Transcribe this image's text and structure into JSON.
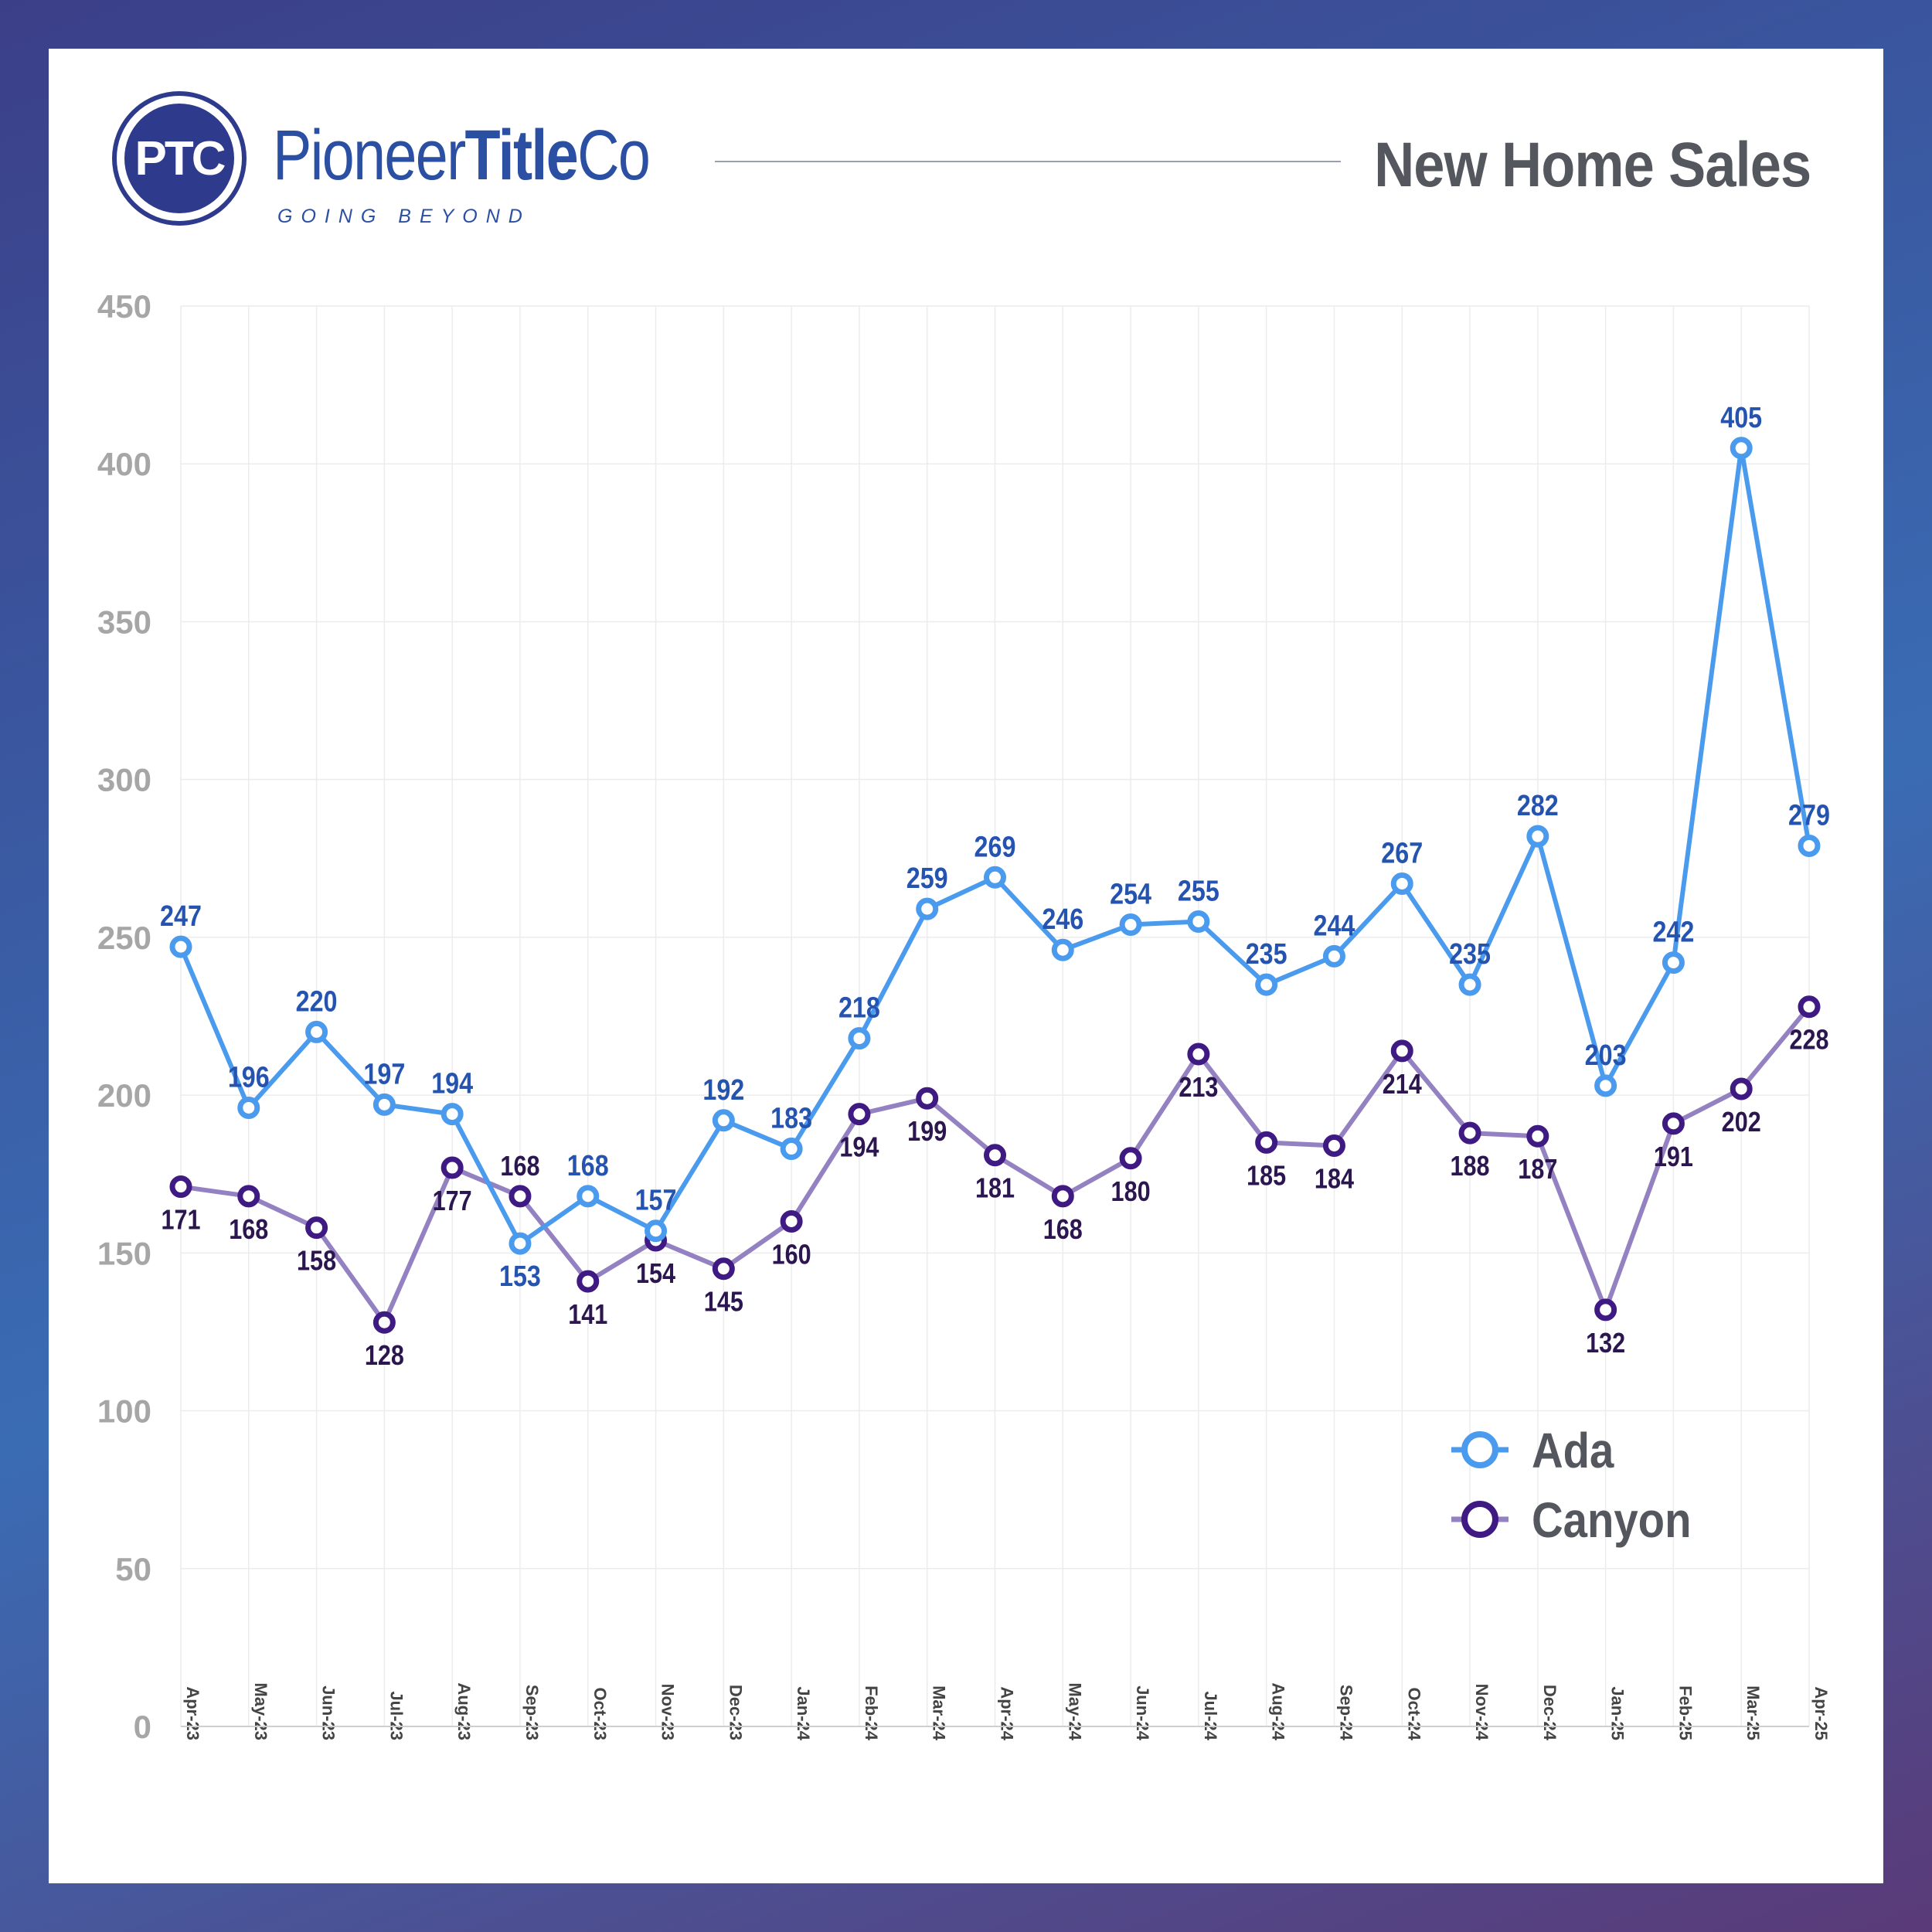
{
  "header": {
    "logo_mark": "PTC",
    "brand_part1": "Pioneer",
    "brand_part2": "Title",
    "brand_part3": "Co",
    "tagline": "GOING BEYOND",
    "title": "New Home Sales"
  },
  "colors": {
    "ada": "#4a9aee",
    "ada_label": "#2553b0",
    "canyon_line": "#9481c2",
    "canyon_marker": "#3f1a82",
    "canyon_label": "#2c1650",
    "axis_text": "#a6a6a6",
    "grid": "#ececec"
  },
  "chart_data": {
    "type": "line",
    "title": "New Home Sales",
    "categories": [
      "Apr-23",
      "May-23",
      "Jun-23",
      "Jul-23",
      "Aug-23",
      "Sep-23",
      "Oct-23",
      "Nov-23",
      "Dec-23",
      "Jan-24",
      "Feb-24",
      "Mar-24",
      "Apr-24",
      "May-24",
      "Jun-24",
      "Jul-24",
      "Aug-24",
      "Sep-24",
      "Oct-24",
      "Nov-24",
      "Dec-24",
      "Jan-25",
      "Feb-25",
      "Mar-25",
      "Apr-25"
    ],
    "series": [
      {
        "name": "Ada",
        "values": [
          247,
          196,
          220,
          197,
          194,
          153,
          168,
          157,
          192,
          183,
          218,
          259,
          269,
          246,
          254,
          255,
          235,
          244,
          267,
          235,
          282,
          203,
          242,
          405,
          279
        ]
      },
      {
        "name": "Canyon",
        "values": [
          171,
          168,
          158,
          128,
          177,
          168,
          141,
          154,
          145,
          160,
          194,
          199,
          181,
          168,
          180,
          213,
          185,
          184,
          214,
          188,
          187,
          132,
          191,
          202,
          228
        ]
      }
    ],
    "yticks": [
      0,
      50,
      100,
      150,
      200,
      250,
      300,
      350,
      400,
      450
    ],
    "ylim": [
      0,
      450
    ],
    "grid": true,
    "legend": "bottom-right",
    "data_labels": true
  }
}
